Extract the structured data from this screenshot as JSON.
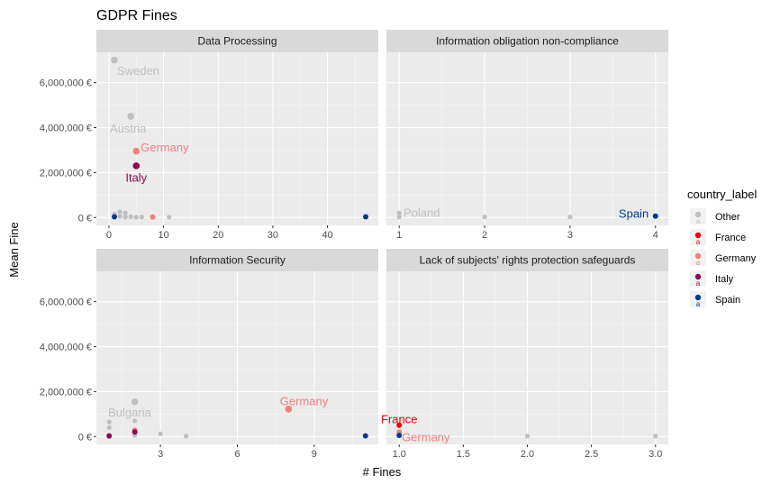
{
  "chart_data": {
    "type": "scatter",
    "title": "GDPR Fines",
    "xlabel": "# Fines",
    "ylabel": "Mean Fine",
    "ylim": [
      -350000,
      7350000
    ],
    "y_ticks": [
      0,
      2000000,
      4000000,
      6000000
    ],
    "y_tick_labels": [
      "0 €",
      "2,000,000 €",
      "4,000,000 €",
      "6,000,000 €"
    ],
    "legend": {
      "title": "country_label",
      "placement": "right",
      "entries": [
        {
          "name": "Other",
          "color": "#bfbfbf"
        },
        {
          "name": "France",
          "color": "#e8000b"
        },
        {
          "name": "Germany",
          "color": "#f08080"
        },
        {
          "name": "Italy",
          "color": "#8b0a50"
        },
        {
          "name": "Spain",
          "color": "#003a8c"
        }
      ]
    },
    "facets": [
      {
        "title": "Data Processing",
        "xlim": [
          -2.3,
          49.3
        ],
        "x_ticks": [
          0,
          10,
          20,
          30,
          40
        ],
        "x_tick_labels": [
          "0",
          "10",
          "20",
          "30",
          "40"
        ],
        "points": [
          {
            "x": 1,
            "y": 7000000,
            "country": "Other"
          },
          {
            "x": 4,
            "y": 4500000,
            "country": "Other"
          },
          {
            "x": 5,
            "y": 2950000,
            "country": "Germany"
          },
          {
            "x": 5,
            "y": 2300000,
            "country": "Italy"
          },
          {
            "x": 1,
            "y": 150000,
            "country": "Other"
          },
          {
            "x": 2,
            "y": 250000,
            "country": "Other"
          },
          {
            "x": 3,
            "y": 200000,
            "country": "Other"
          },
          {
            "x": 2,
            "y": 50000,
            "country": "Other"
          },
          {
            "x": 3,
            "y": 20000,
            "country": "Other"
          },
          {
            "x": 4,
            "y": 30000,
            "country": "Other"
          },
          {
            "x": 5,
            "y": 10000,
            "country": "Other"
          },
          {
            "x": 6,
            "y": 20000,
            "country": "Other"
          },
          {
            "x": 8,
            "y": 20000,
            "country": "Germany"
          },
          {
            "x": 11,
            "y": 20000,
            "country": "Other"
          },
          {
            "x": 1,
            "y": 30000,
            "country": "Spain"
          },
          {
            "x": 47,
            "y": 30000,
            "country": "Spain"
          }
        ],
        "labels": [
          {
            "text": "Sweden",
            "x": 1.5,
            "y": 6500000,
            "country": "Other",
            "anchor": "start"
          },
          {
            "text": "Austria",
            "x": 3.5,
            "y": 3950000,
            "country": "Other",
            "anchor": "middle"
          },
          {
            "text": "Germany",
            "x": 5.8,
            "y": 3100000,
            "country": "Germany",
            "anchor": "start"
          },
          {
            "text": "Italy",
            "x": 5,
            "y": 1750000,
            "country": "Italy",
            "anchor": "middle"
          }
        ]
      },
      {
        "title": "Information obligation non-compliance",
        "xlim": [
          0.85,
          4.15
        ],
        "x_ticks": [
          1,
          2,
          3,
          4
        ],
        "x_tick_labels": [
          "1",
          "2",
          "3",
          "4"
        ],
        "points": [
          {
            "x": 1,
            "y": 200000,
            "country": "Other"
          },
          {
            "x": 1,
            "y": 20000,
            "country": "Other"
          },
          {
            "x": 2,
            "y": 20000,
            "country": "Other"
          },
          {
            "x": 3,
            "y": 20000,
            "country": "Other"
          },
          {
            "x": 4,
            "y": 60000,
            "country": "Spain"
          }
        ],
        "labels": [
          {
            "text": "Poland",
            "x": 1.05,
            "y": 200000,
            "country": "Other",
            "anchor": "start"
          },
          {
            "text": "Spain",
            "x": 3.92,
            "y": 150000,
            "country": "Spain",
            "anchor": "end"
          }
        ]
      },
      {
        "title": "Information Security",
        "xlim": [
          0.5,
          11.5
        ],
        "x_ticks": [
          3,
          6,
          9
        ],
        "x_tick_labels": [
          "3",
          "6",
          "9"
        ],
        "points": [
          {
            "x": 2,
            "y": 1550000,
            "country": "Other"
          },
          {
            "x": 8,
            "y": 1220000,
            "country": "Germany"
          },
          {
            "x": 1,
            "y": 650000,
            "country": "Other"
          },
          {
            "x": 2,
            "y": 700000,
            "country": "Other"
          },
          {
            "x": 1,
            "y": 400000,
            "country": "Other"
          },
          {
            "x": 2,
            "y": 280000,
            "country": "Germany"
          },
          {
            "x": 2,
            "y": 200000,
            "country": "Italy"
          },
          {
            "x": 3,
            "y": 120000,
            "country": "Other"
          },
          {
            "x": 2,
            "y": 60000,
            "country": "Other"
          },
          {
            "x": 1,
            "y": 30000,
            "country": "Italy"
          },
          {
            "x": 1,
            "y": 0,
            "country": "Other"
          },
          {
            "x": 4,
            "y": 20000,
            "country": "Other"
          },
          {
            "x": 11,
            "y": 30000,
            "country": "Spain"
          }
        ],
        "labels": [
          {
            "text": "Bulgaria",
            "x": 1.8,
            "y": 1050000,
            "country": "Other",
            "anchor": "middle"
          },
          {
            "text": "Germany",
            "x": 8.6,
            "y": 1550000,
            "country": "Germany",
            "anchor": "middle"
          }
        ]
      },
      {
        "title": "Lack of subjects' rights protection safeguards",
        "xlim": [
          0.9,
          3.1
        ],
        "x_ticks": [
          1,
          1.5,
          2,
          2.5,
          3
        ],
        "x_tick_labels": [
          "1.0",
          "1.5",
          "2.0",
          "2.5",
          "3.0"
        ],
        "points": [
          {
            "x": 1,
            "y": 500000,
            "country": "France"
          },
          {
            "x": 1,
            "y": 200000,
            "country": "Germany"
          },
          {
            "x": 1,
            "y": 50000,
            "country": "Spain"
          },
          {
            "x": 2,
            "y": 20000,
            "country": "Other"
          },
          {
            "x": 3,
            "y": 20000,
            "country": "Other"
          }
        ],
        "labels": [
          {
            "text": "France",
            "x": 1,
            "y": 750000,
            "country": "France",
            "anchor": "middle"
          },
          {
            "text": "Germany",
            "x": 1.02,
            "y": -50000,
            "country": "Germany",
            "anchor": "start"
          }
        ]
      }
    ]
  }
}
